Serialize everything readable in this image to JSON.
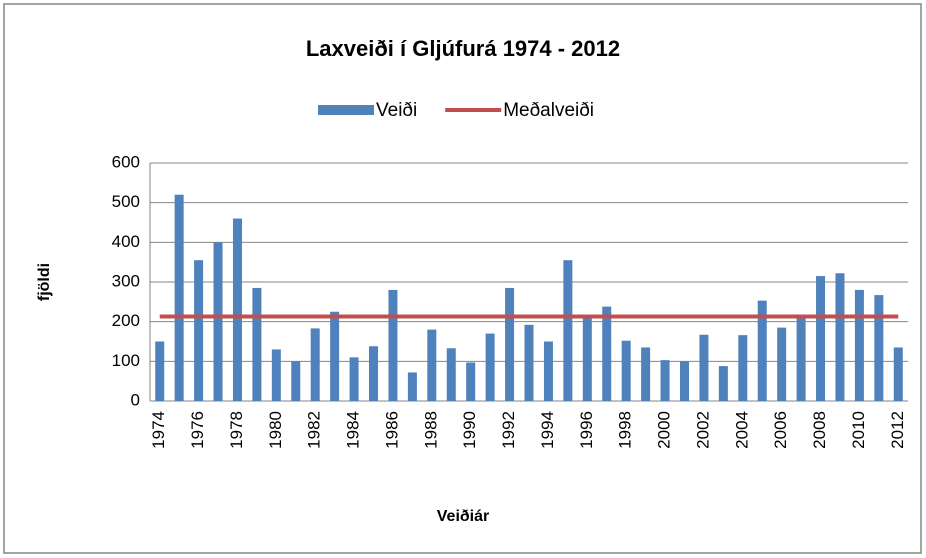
{
  "chart_data": {
    "type": "bar",
    "title": "Laxveiði í Gljúfurá 1974 - 2012",
    "x_label": "Veiðiár",
    "y_label": "fjöldi",
    "categories": [
      "1974",
      null,
      "1976",
      null,
      "1978",
      null,
      "1980",
      null,
      "1982",
      null,
      "1984",
      null,
      "1986",
      null,
      "1988",
      null,
      "1990",
      null,
      "1992",
      null,
      "1994",
      null,
      "1996",
      null,
      "1998",
      null,
      "2000",
      null,
      "2002",
      null,
      "2004",
      null,
      "2006",
      null,
      "2008",
      null,
      "2010",
      null,
      "2012"
    ],
    "series": [
      {
        "name": "Veiði",
        "type": "bar",
        "color": "#4f81bd",
        "values": [
          150,
          520,
          355,
          400,
          460,
          285,
          130,
          100,
          183,
          225,
          110,
          138,
          280,
          72,
          180,
          133,
          97,
          170,
          285,
          192,
          150,
          355,
          210,
          238,
          152,
          135,
          103,
          100,
          167,
          88,
          166,
          253,
          185,
          215,
          315,
          322,
          280,
          267,
          135
        ]
      },
      {
        "name": "Meðalveiði",
        "type": "line",
        "color": "#c0504d",
        "values": [
          213,
          213,
          213,
          213,
          213,
          213,
          213,
          213,
          213,
          213,
          213,
          213,
          213,
          213,
          213,
          213,
          213,
          213,
          213,
          213,
          213,
          213,
          213,
          213,
          213,
          213,
          213,
          213,
          213,
          213,
          213,
          213,
          213,
          213,
          213,
          213,
          213,
          213,
          213
        ]
      }
    ],
    "ylim": [
      0,
      600
    ],
    "yticks": [
      0,
      100,
      200,
      300,
      400,
      500,
      600
    ],
    "grid": true,
    "legend": "top"
  }
}
